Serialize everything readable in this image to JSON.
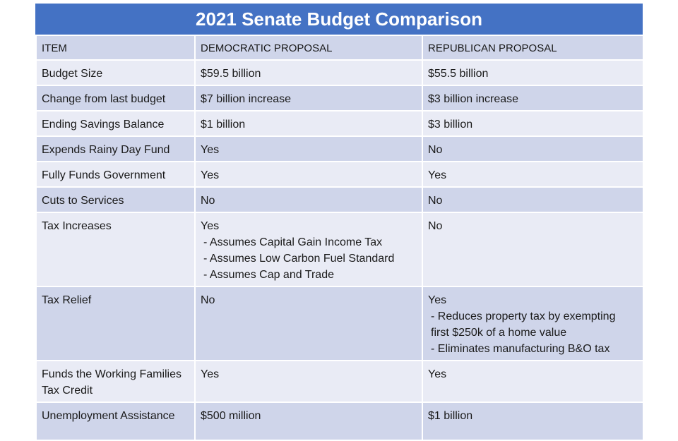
{
  "title": "2021 Senate Budget Comparison",
  "colors": {
    "header_band": "#4472c4",
    "row_dark": "#cfd5ea",
    "row_light": "#e9ebf5"
  },
  "columns": [
    "ITEM",
    "DEMOCRATIC PROPOSAL",
    "REPUBLICAN PROPOSAL"
  ],
  "rows": [
    {
      "item": "Budget Size",
      "dem": [
        "$59.5 billion"
      ],
      "rep": [
        "$55.5 billion"
      ]
    },
    {
      "item": "Change from last budget",
      "dem": [
        "$7 billion increase"
      ],
      "rep": [
        "$3 billion increase"
      ]
    },
    {
      "item": "Ending Savings Balance",
      "dem": [
        "$1 billion"
      ],
      "rep": [
        "$3 billion"
      ]
    },
    {
      "item": "Expends Rainy Day Fund",
      "dem": [
        "Yes"
      ],
      "rep": [
        "No"
      ]
    },
    {
      "item": "Fully Funds Government",
      "dem": [
        "Yes"
      ],
      "rep": [
        "Yes"
      ]
    },
    {
      "item": "Cuts to Services",
      "dem": [
        "No"
      ],
      "rep": [
        "No"
      ]
    },
    {
      "item": "Tax Increases",
      "dem": [
        "Yes",
        "- Assumes Capital Gain Income Tax",
        "- Assumes Low Carbon Fuel Standard",
        "- Assumes Cap and Trade"
      ],
      "rep": [
        "No"
      ]
    },
    {
      "item": "Tax Relief",
      "dem": [
        "No"
      ],
      "rep": [
        "Yes",
        "- Reduces property tax by exempting",
        "first $250k of a home value",
        "- Eliminates manufacturing B&O tax"
      ]
    },
    {
      "item": "Funds the Working Families Tax Credit",
      "dem": [
        "Yes"
      ],
      "rep": [
        "Yes"
      ]
    },
    {
      "item": "Unemployment Assistance",
      "dem": [
        "$500 million"
      ],
      "rep": [
        "$1 billion"
      ]
    }
  ]
}
